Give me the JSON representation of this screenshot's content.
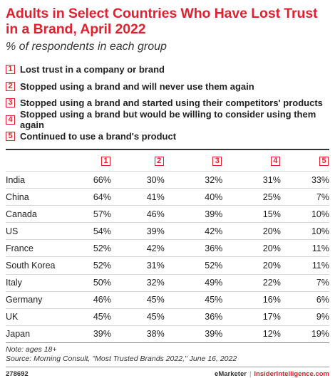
{
  "header": {
    "title": "Adults in Select Countries Who Have Lost Trust in a Brand, April 2022",
    "subtitle": "% of respondents in each group"
  },
  "legend": [
    {
      "num": "1",
      "label": "Lost trust in a company or brand"
    },
    {
      "num": "2",
      "label": "Stopped using a brand and will never use them again"
    },
    {
      "num": "3",
      "label": "Stopped using a brand and started using their competitors' products"
    },
    {
      "num": "4",
      "label": "Stopped using a brand but would be willing to consider using them again"
    },
    {
      "num": "5",
      "label": "Continued to use a brand's product"
    }
  ],
  "chart_data": {
    "type": "table",
    "columns": [
      "1",
      "2",
      "3",
      "4",
      "5"
    ],
    "rows": [
      {
        "country": "India",
        "values": [
          "66%",
          "30%",
          "32%",
          "31%",
          "33%"
        ]
      },
      {
        "country": "China",
        "values": [
          "64%",
          "41%",
          "40%",
          "25%",
          "7%"
        ]
      },
      {
        "country": "Canada",
        "values": [
          "57%",
          "46%",
          "39%",
          "15%",
          "10%"
        ]
      },
      {
        "country": "US",
        "values": [
          "54%",
          "39%",
          "42%",
          "20%",
          "10%"
        ]
      },
      {
        "country": "France",
        "values": [
          "52%",
          "42%",
          "36%",
          "20%",
          "11%"
        ]
      },
      {
        "country": "South Korea",
        "values": [
          "52%",
          "31%",
          "52%",
          "20%",
          "11%"
        ]
      },
      {
        "country": "Italy",
        "values": [
          "50%",
          "32%",
          "49%",
          "22%",
          "7%"
        ]
      },
      {
        "country": "Germany",
        "values": [
          "46%",
          "45%",
          "45%",
          "16%",
          "6%"
        ]
      },
      {
        "country": "UK",
        "values": [
          "45%",
          "45%",
          "36%",
          "17%",
          "9%"
        ]
      },
      {
        "country": "Japan",
        "values": [
          "39%",
          "38%",
          "39%",
          "12%",
          "19%"
        ]
      }
    ]
  },
  "notes": {
    "note": "Note: ages 18+",
    "source": "Source: Morning Consult, \"Most Trusted Brands 2022,\" June 16, 2022"
  },
  "footer": {
    "id": "278692",
    "brand1": "eMarketer",
    "separator": "|",
    "brand2": "InsiderIntelligence.com"
  },
  "colors": {
    "accent": "#e4202f"
  }
}
